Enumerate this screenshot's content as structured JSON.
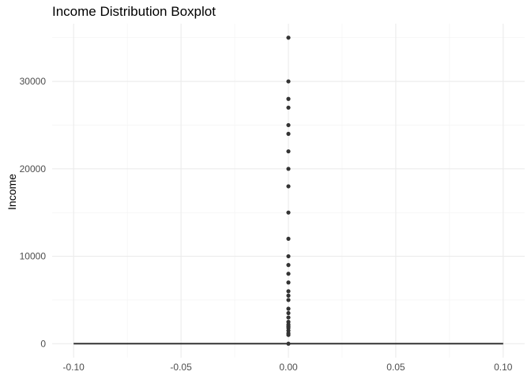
{
  "chart_data": {
    "type": "boxplot",
    "title": "Income Distribution Boxplot",
    "xlabel": "",
    "ylabel": "Income",
    "xlim": [
      -0.11,
      0.11
    ],
    "ylim": [
      -1600,
      36600
    ],
    "x_ticks": [
      -0.1,
      -0.05,
      0.0,
      0.05,
      0.1
    ],
    "x_tick_labels": [
      "-0.10",
      "-0.05",
      "0.00",
      "0.05",
      "0.10"
    ],
    "y_ticks": [
      0,
      10000,
      20000,
      30000
    ],
    "y_tick_labels": [
      "0",
      "10000",
      "20000",
      "30000"
    ],
    "grid": true,
    "box": {
      "x": 0,
      "width": 0.2,
      "q1": 0,
      "median": 0,
      "q3": 0,
      "whisker_low": 0,
      "whisker_high": 0
    },
    "outliers": [
      35000,
      30000,
      28000,
      27000,
      25000,
      24000,
      22000,
      20000,
      18000,
      15000,
      12000,
      10000,
      9000,
      8000,
      7000,
      6000,
      5500,
      5000,
      4000,
      3500,
      3000,
      2500,
      2200,
      2000,
      1800,
      1500,
      1200,
      1000,
      0
    ],
    "point_color": "#333333",
    "box_color": "#333333"
  }
}
